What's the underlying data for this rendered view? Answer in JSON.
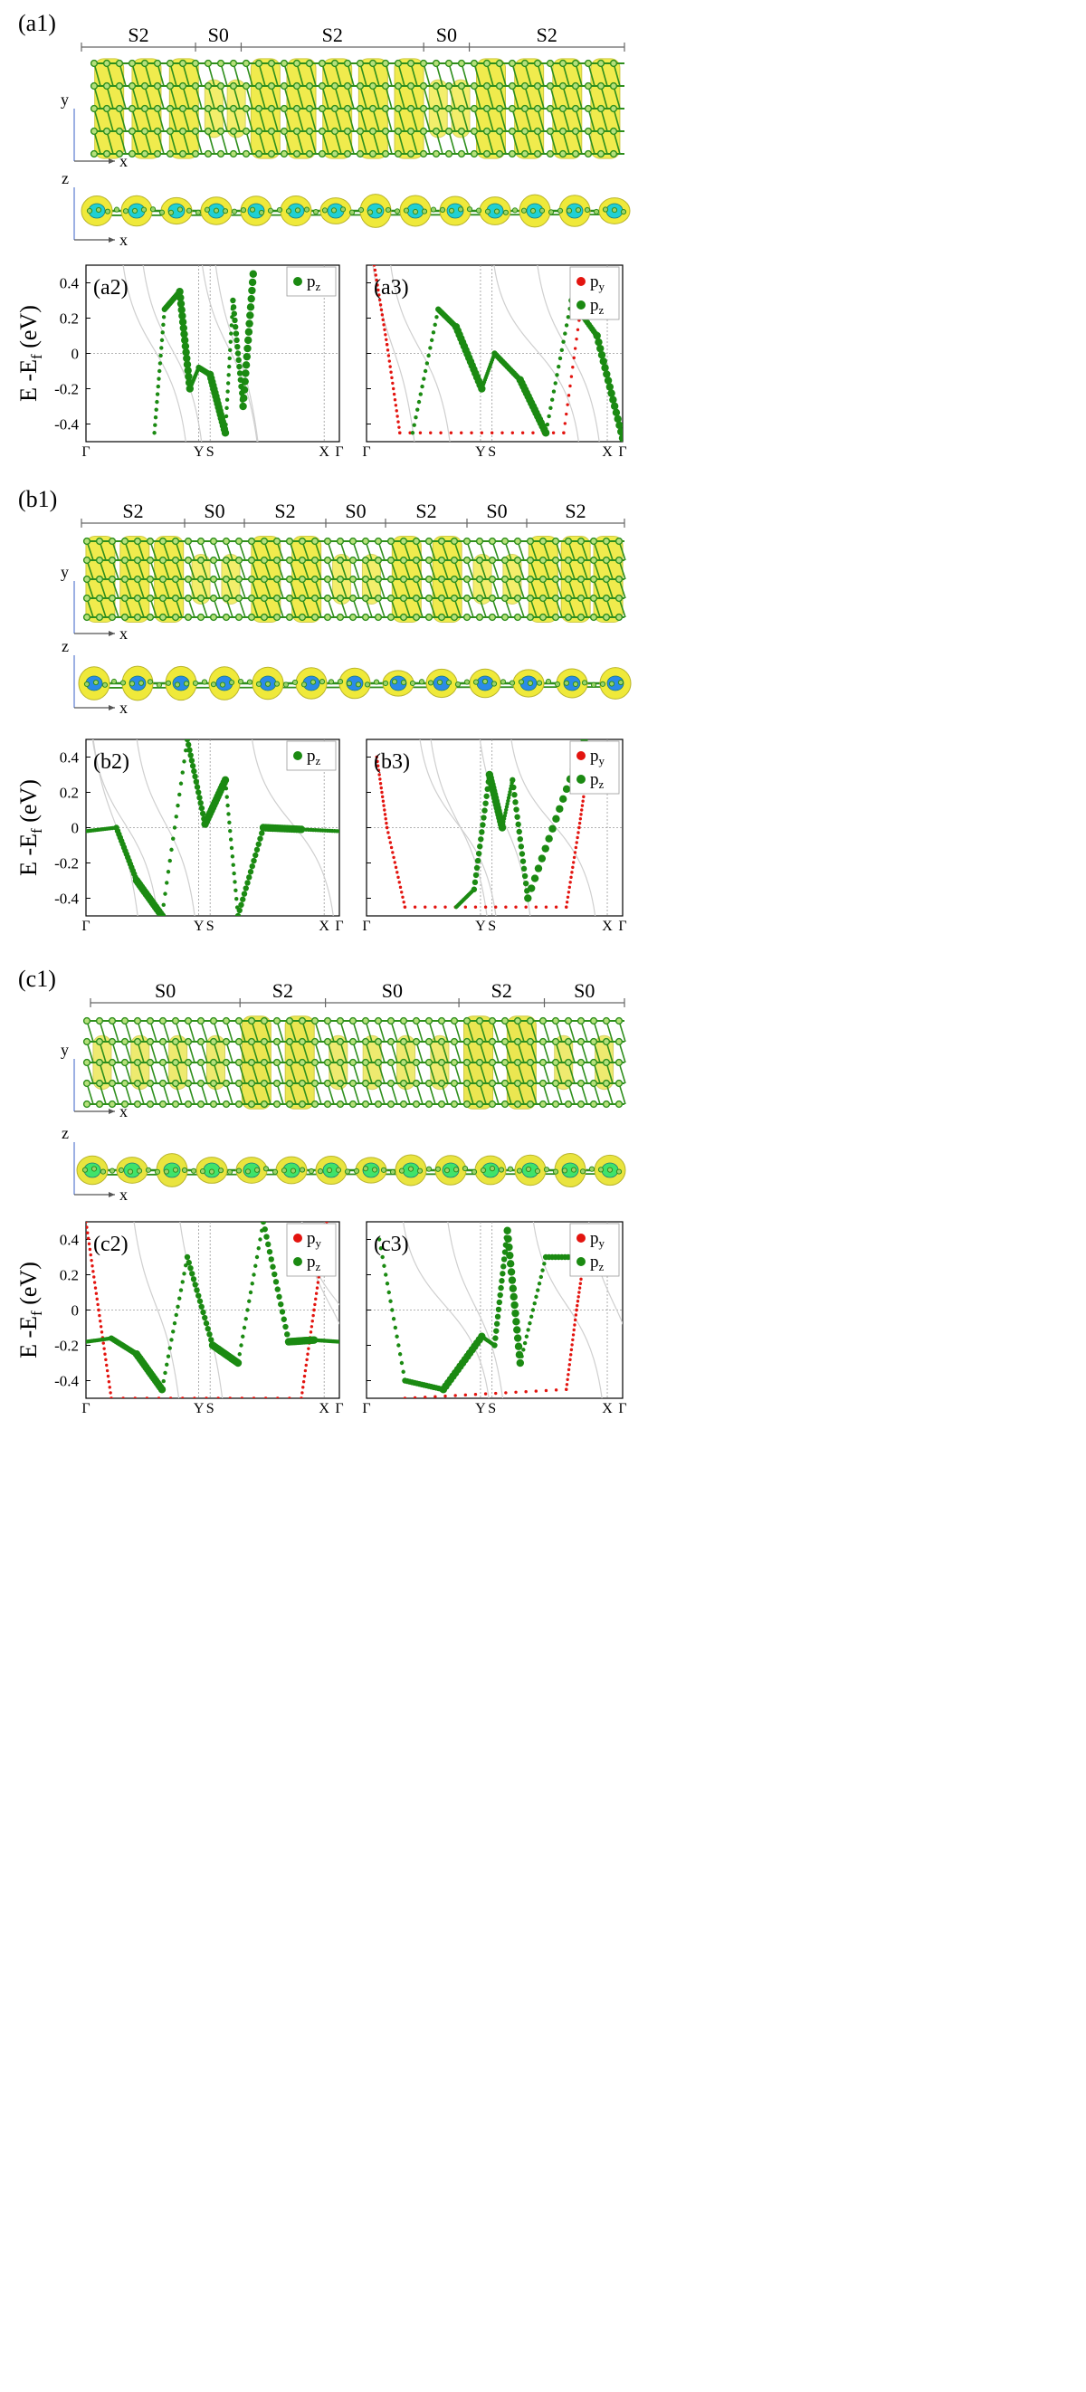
{
  "panels": [
    {
      "id": "a",
      "label": "(a1)",
      "segments": [
        "S2",
        "S0",
        "S2",
        "S0",
        "S2"
      ],
      "segment_fracs": [
        0.25,
        0.1,
        0.4,
        0.1,
        0.34
      ],
      "plot_labels": [
        "(a2)",
        "(a3)"
      ],
      "legends": [
        [
          "p",
          "z"
        ],
        [
          "p",
          "y",
          "p",
          "z"
        ]
      ],
      "density_color": "#efe93a",
      "bulb_color": "#20d0d4"
    },
    {
      "id": "b",
      "label": "(b1)",
      "segments": [
        "S2",
        "S0",
        "S2",
        "S0",
        "S2",
        "S0",
        "S2"
      ],
      "segment_fracs": [
        0.19,
        0.11,
        0.15,
        0.11,
        0.15,
        0.11,
        0.18
      ],
      "plot_labels": [
        "(b2)",
        "(b3)"
      ],
      "legends": [
        [
          "p",
          "z"
        ],
        [
          "p",
          "y",
          "p",
          "z"
        ]
      ],
      "density_color": "#efe93a",
      "bulb_color": "#2b8be8"
    },
    {
      "id": "c",
      "label": "(c1)",
      "segments": [
        "S0",
        "S2",
        "S0",
        "S2",
        "S0"
      ],
      "segment_fracs": [
        0.28,
        0.16,
        0.25,
        0.16,
        0.15
      ],
      "plot_labels": [
        "(c2)",
        "(c3)"
      ],
      "legends": [
        [
          "p",
          "y",
          "p",
          "z"
        ],
        [
          "p",
          "y",
          "p",
          "z"
        ]
      ],
      "density_color": "#e9e43f",
      "bulb_color": "#3fe36a"
    }
  ],
  "axes": {
    "ylabel_main": "E -E",
    "ylabel_sub": "f",
    "ylabel_unit": "(eV)",
    "yticks": [
      "0.4",
      "0.2",
      "0",
      "-0.2",
      "-0.4"
    ],
    "ytick_values": [
      0.4,
      0.2,
      0,
      -0.2,
      -0.4
    ],
    "ylim": [
      -0.5,
      0.5
    ],
    "kpoints": [
      "Γ",
      "Y",
      "S",
      "X",
      "Γ"
    ],
    "kpoint_positions": [
      0,
      0.445,
      0.49,
      0.94,
      1.0
    ]
  },
  "axis_letters": {
    "x": "x",
    "y": "y",
    "z": "z"
  },
  "colors": {
    "pz": "#1b8a12",
    "py": "#e3140f",
    "bulk": "#cfcfcf",
    "atom": "#2f8f1d"
  },
  "chart_data": [
    {
      "type": "scatter",
      "title": "(a2)",
      "xlabel": "",
      "ylabel": "E -Ef (eV)",
      "ylim": [
        -0.5,
        0.5
      ],
      "x_ticks": [
        "Γ",
        "Y",
        "S",
        "X",
        "Γ"
      ],
      "legend": [
        "pz"
      ],
      "series": [
        {
          "name": "pz",
          "x": [
            0.27,
            0.31,
            0.37,
            0.41,
            0.445,
            0.49,
            0.55,
            0.58,
            0.62,
            0.66
          ],
          "y": [
            -0.45,
            0.25,
            0.35,
            -0.2,
            -0.08,
            -0.12,
            -0.45,
            0.3,
            -0.3,
            0.45
          ]
        }
      ]
    },
    {
      "type": "scatter",
      "title": "(a3)",
      "xlabel": "",
      "ylabel": "E -Ef (eV)",
      "ylim": [
        -0.5,
        0.5
      ],
      "x_ticks": [
        "Γ",
        "Y",
        "S",
        "X",
        "Γ"
      ],
      "legend": [
        "py",
        "pz"
      ],
      "series": [
        {
          "name": "py",
          "x": [
            0.03,
            0.08,
            0.13,
            0.77,
            0.85
          ],
          "y": [
            0.5,
            0.05,
            -0.45,
            -0.45,
            0.4
          ]
        },
        {
          "name": "pz",
          "x": [
            0.18,
            0.28,
            0.35,
            0.45,
            0.5,
            0.6,
            0.7,
            0.8,
            0.9,
            1.0
          ],
          "y": [
            -0.45,
            0.25,
            0.15,
            -0.2,
            0.0,
            -0.15,
            -0.45,
            0.3,
            0.1,
            -0.48
          ]
        }
      ]
    },
    {
      "type": "scatter",
      "title": "(b2)",
      "xlabel": "",
      "ylabel": "E -Ef (eV)",
      "ylim": [
        -0.5,
        0.5
      ],
      "x_ticks": [
        "Γ",
        "Y",
        "S",
        "X",
        "Γ"
      ],
      "legend": [
        "pz"
      ],
      "series": [
        {
          "name": "pz",
          "x": [
            0.0,
            0.12,
            0.2,
            0.3,
            0.4,
            0.47,
            0.55,
            0.6,
            0.7,
            0.85,
            1.0
          ],
          "y": [
            -0.02,
            0.0,
            -0.3,
            -0.5,
            0.5,
            0.02,
            0.27,
            -0.5,
            0.0,
            -0.01,
            -0.02
          ]
        }
      ]
    },
    {
      "type": "scatter",
      "title": "(b3)",
      "xlabel": "",
      "ylabel": "E -Ef (eV)",
      "ylim": [
        -0.5,
        0.5
      ],
      "x_ticks": [
        "Γ",
        "Y",
        "S",
        "X",
        "Γ"
      ],
      "legend": [
        "py",
        "pz"
      ],
      "series": [
        {
          "name": "py",
          "x": [
            0.04,
            0.08,
            0.15,
            0.78,
            0.83,
            0.87
          ],
          "y": [
            0.4,
            0.0,
            -0.45,
            -0.45,
            0.0,
            0.4
          ]
        },
        {
          "name": "pz",
          "x": [
            0.35,
            0.42,
            0.48,
            0.53,
            0.57,
            0.63,
            0.85
          ],
          "y": [
            -0.45,
            -0.35,
            0.3,
            0.0,
            0.27,
            -0.4,
            0.5
          ]
        }
      ]
    },
    {
      "type": "scatter",
      "title": "(c2)",
      "xlabel": "",
      "ylabel": "E -Ef (eV)",
      "ylim": [
        -0.5,
        0.5
      ],
      "x_ticks": [
        "Γ",
        "Y",
        "S",
        "X",
        "Γ"
      ],
      "legend": [
        "py",
        "pz"
      ],
      "series": [
        {
          "name": "py",
          "x": [
            0.0,
            0.05,
            0.1,
            0.85,
            0.9,
            0.95
          ],
          "y": [
            0.5,
            0.0,
            -0.5,
            -0.5,
            0.0,
            0.5
          ]
        },
        {
          "name": "pz",
          "x": [
            0.0,
            0.1,
            0.2,
            0.3,
            0.4,
            0.5,
            0.6,
            0.7,
            0.8,
            0.9,
            1.0
          ],
          "y": [
            -0.18,
            -0.16,
            -0.25,
            -0.45,
            0.3,
            -0.2,
            -0.3,
            0.5,
            -0.18,
            -0.17,
            -0.18
          ]
        }
      ]
    },
    {
      "type": "scatter",
      "title": "(c3)",
      "xlabel": "",
      "ylabel": "E -Ef (eV)",
      "ylim": [
        -0.5,
        0.5
      ],
      "x_ticks": [
        "Γ",
        "Y",
        "S",
        "X",
        "Γ"
      ],
      "legend": [
        "py",
        "pz"
      ],
      "series": [
        {
          "name": "py",
          "x": [
            0.15,
            0.78,
            0.82,
            0.86
          ],
          "y": [
            -0.5,
            -0.45,
            0.0,
            0.4
          ]
        },
        {
          "name": "pz",
          "x": [
            0.05,
            0.15,
            0.3,
            0.45,
            0.5,
            0.55,
            0.6,
            0.7,
            0.9
          ],
          "y": [
            0.4,
            -0.4,
            -0.45,
            -0.15,
            -0.2,
            0.45,
            -0.3,
            0.3,
            0.3
          ]
        }
      ]
    }
  ]
}
